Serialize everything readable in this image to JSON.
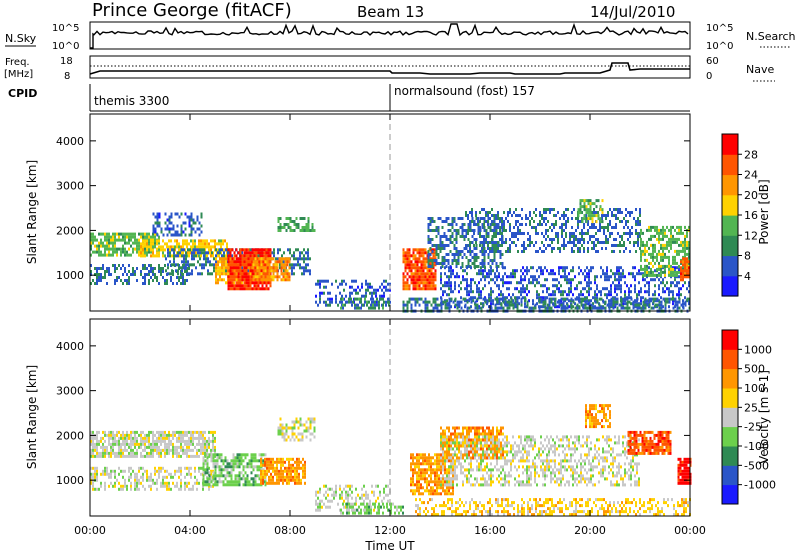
{
  "header": {
    "station": "Prince George (fitACF)",
    "beam": "Beam 13",
    "date": "14/Jul/2010"
  },
  "panels": {
    "nsky": {
      "label": "N.Sky",
      "top": "10^5",
      "bottom": "10^0",
      "right_top": "10^5",
      "right_bottom": "10^0",
      "right_label": "N.Search"
    },
    "freq": {
      "label_1": "Freq.",
      "label_2": "[MHz]",
      "top": "18",
      "bottom": "8",
      "right_top": "60",
      "right_bottom": "0",
      "right_label": "Nave"
    },
    "cpid": {
      "label": "CPID",
      "modes": [
        "themis 3300",
        "normalsound (fost) 157"
      ]
    }
  },
  "colors": {
    "power": [
      "#1a1aff",
      "#2a55c8",
      "#2f8a54",
      "#52b552",
      "#ffd200",
      "#ff9600",
      "#ff5500",
      "#ff0000"
    ],
    "velocity": [
      "#1a1aff",
      "#2a55c8",
      "#2f8a54",
      "#6cd04c",
      "#c8c8c8",
      "#ffd200",
      "#ff9600",
      "#ff5500",
      "#ff0000"
    ],
    "ground_scatter": "#b4b4b4"
  },
  "chart_data": [
    {
      "type": "heatmap",
      "title": "Power",
      "xlabel": "",
      "ylabel": "Slant Range [km]",
      "xlim": [
        0,
        24
      ],
      "ylim": [
        200,
        4600
      ],
      "yticks": [
        "1000",
        "2000",
        "3000",
        "4000"
      ],
      "colorbar": {
        "label": "Power [dB]",
        "ticks": [
          "4",
          "8",
          "12",
          "16",
          "20",
          "24",
          "28"
        ],
        "range": [
          0,
          32
        ]
      },
      "patches": [
        {
          "t0": 0.0,
          "t1": 2.8,
          "r0": 1450,
          "r1": 1950,
          "v": 14,
          "density": 0.75
        },
        {
          "t0": 2.0,
          "t1": 5.5,
          "r0": 1400,
          "r1": 1800,
          "v": 18,
          "density": 0.7
        },
        {
          "t0": 0.0,
          "t1": 4.0,
          "r0": 800,
          "r1": 1250,
          "v": 8,
          "density": 0.45
        },
        {
          "t0": 2.5,
          "t1": 4.5,
          "r0": 1900,
          "r1": 2400,
          "v": 6,
          "density": 0.4
        },
        {
          "t0": 3.0,
          "t1": 8.8,
          "r0": 1000,
          "r1": 1600,
          "v": 8,
          "density": 0.5
        },
        {
          "t0": 5.0,
          "t1": 6.5,
          "r0": 800,
          "r1": 1400,
          "v": 20,
          "density": 0.8
        },
        {
          "t0": 5.5,
          "t1": 7.2,
          "r0": 700,
          "r1": 1600,
          "v": 28,
          "density": 0.9
        },
        {
          "t0": 6.5,
          "t1": 8.0,
          "r0": 900,
          "r1": 1400,
          "v": 22,
          "density": 0.8
        },
        {
          "t0": 7.5,
          "t1": 9.0,
          "r0": 2000,
          "r1": 2300,
          "v": 12,
          "density": 0.5
        },
        {
          "t0": 9.0,
          "t1": 12.0,
          "r0": 300,
          "r1": 900,
          "v": 6,
          "density": 0.35
        },
        {
          "t0": 10.0,
          "t1": 12.0,
          "r0": 250,
          "r1": 500,
          "v": 10,
          "density": 0.5
        },
        {
          "t0": 12.5,
          "t1": 13.8,
          "r0": 700,
          "r1": 1600,
          "v": 26,
          "density": 0.85
        },
        {
          "t0": 13.5,
          "t1": 16.5,
          "r0": 1200,
          "r1": 2300,
          "v": 8,
          "density": 0.5
        },
        {
          "t0": 14.0,
          "t1": 24.0,
          "r0": 300,
          "r1": 1200,
          "v": 6,
          "density": 0.4
        },
        {
          "t0": 15.0,
          "t1": 22.0,
          "r0": 1500,
          "r1": 2500,
          "v": 7,
          "density": 0.4
        },
        {
          "t0": 19.5,
          "t1": 20.5,
          "r0": 2200,
          "r1": 2700,
          "v": 14,
          "density": 0.6
        },
        {
          "t0": 22.0,
          "t1": 24.0,
          "r0": 1000,
          "r1": 2100,
          "v": 14,
          "density": 0.6
        },
        {
          "t0": 23.6,
          "t1": 24.0,
          "r0": 900,
          "r1": 1400,
          "v": 26,
          "density": 0.8
        },
        {
          "t0": 12.5,
          "t1": 24.0,
          "r0": 200,
          "r1": 500,
          "v": 8,
          "density": 0.55
        }
      ]
    },
    {
      "type": "heatmap",
      "title": "Velocity",
      "xlabel": "Time UT",
      "ylabel": "Slant Range [km]",
      "xlim": [
        0,
        24
      ],
      "ylim": [
        200,
        4600
      ],
      "xticks": [
        "00:00",
        "04:00",
        "08:00",
        "12:00",
        "16:00",
        "20:00",
        "00:00"
      ],
      "yticks": [
        "1000",
        "2000",
        "3000",
        "4000"
      ],
      "colorbar": {
        "label": "Velocity [m s-1]",
        "ticks": [
          "1000",
          "500",
          "100",
          "25",
          "-25",
          "-100",
          "-500",
          "-1000"
        ]
      },
      "patches": [
        {
          "t0": 0.0,
          "t1": 5.0,
          "r0": 1500,
          "r1": 2100,
          "v": 4,
          "density": 0.75
        },
        {
          "t0": 0.0,
          "t1": 5.0,
          "r0": 800,
          "r1": 1300,
          "v": 4,
          "density": 0.5
        },
        {
          "t0": 4.5,
          "t1": 7.0,
          "r0": 900,
          "r1": 1600,
          "v": 3,
          "density": 0.7
        },
        {
          "t0": 6.8,
          "t1": 8.6,
          "r0": 900,
          "r1": 1500,
          "v": 6,
          "density": 0.8
        },
        {
          "t0": 7.5,
          "t1": 9.0,
          "r0": 1900,
          "r1": 2400,
          "v": 4,
          "density": 0.5
        },
        {
          "t0": 9.0,
          "t1": 12.0,
          "r0": 300,
          "r1": 900,
          "v": 4,
          "density": 0.4
        },
        {
          "t0": 10.0,
          "t1": 12.5,
          "r0": 250,
          "r1": 500,
          "v": 3,
          "density": 0.5
        },
        {
          "t0": 12.8,
          "t1": 14.5,
          "r0": 700,
          "r1": 1600,
          "v": 6,
          "density": 0.8
        },
        {
          "t0": 14.0,
          "t1": 16.5,
          "r0": 1500,
          "r1": 2200,
          "v": 6,
          "density": 0.7
        },
        {
          "t0": 14.0,
          "t1": 22.0,
          "r0": 900,
          "r1": 2000,
          "v": 4,
          "density": 0.45
        },
        {
          "t0": 13.0,
          "t1": 24.0,
          "r0": 200,
          "r1": 600,
          "v": 5,
          "density": 0.45
        },
        {
          "t0": 19.8,
          "t1": 20.8,
          "r0": 2200,
          "r1": 2700,
          "v": 6,
          "density": 0.7
        },
        {
          "t0": 21.5,
          "t1": 23.2,
          "r0": 1600,
          "r1": 2100,
          "v": 7,
          "density": 0.85
        },
        {
          "t0": 23.5,
          "t1": 24.0,
          "r0": 900,
          "r1": 1500,
          "v": 8,
          "density": 0.8
        }
      ]
    }
  ]
}
